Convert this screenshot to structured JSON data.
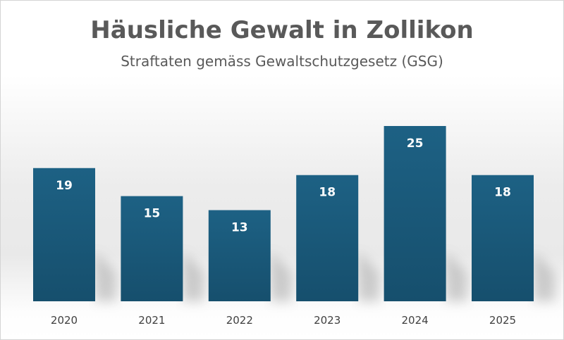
{
  "chart_data": {
    "type": "bar",
    "title": "Häusliche Gewalt in Zollikon",
    "subtitle": "Straftaten gemäss Gewaltschutzgesetz (GSG)",
    "categories": [
      "2020",
      "2021",
      "2022",
      "2023",
      "2024",
      "2025"
    ],
    "values": [
      19,
      15,
      13,
      18,
      25,
      18
    ],
    "xlabel": "",
    "ylabel": "",
    "ylim": [
      0,
      25
    ],
    "grid": false,
    "legend": "none",
    "bar_color": "#1b5b7d"
  }
}
